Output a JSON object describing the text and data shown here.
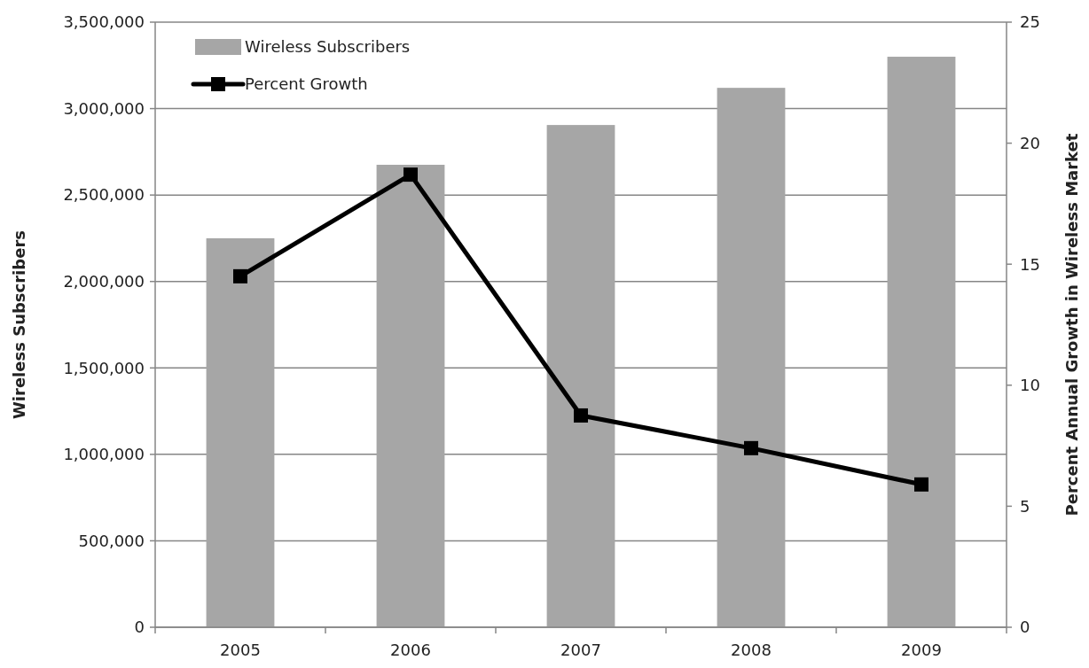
{
  "chart_data": {
    "type": "bar",
    "categories": [
      "2005",
      "2006",
      "2007",
      "2008",
      "2009"
    ],
    "series": [
      {
        "name": "Wireless Subscribers",
        "color": "#a6a6a6",
        "values": [
          2250000,
          2675000,
          2905000,
          3120000,
          3300000
        ]
      },
      {
        "name": "Percent Growth",
        "type": "line",
        "axis": "y2",
        "color": "#000000",
        "values": [
          14.5,
          18.7,
          8.75,
          7.4,
          5.9
        ]
      }
    ],
    "ylabel": "Wireless Subscribers",
    "y2label": "Percent Annual Growth in Wireless Market",
    "ylim": [
      0,
      3500000
    ],
    "yticks": [
      {
        "value": 0,
        "label": "0"
      },
      {
        "value": 500000,
        "label": "500,000"
      },
      {
        "value": 1000000,
        "label": "1,000,000"
      },
      {
        "value": 1500000,
        "label": "1,500,000"
      },
      {
        "value": 2000000,
        "label": "2,000,000"
      },
      {
        "value": 2500000,
        "label": "2,500,000"
      },
      {
        "value": 3000000,
        "label": "3,000,000"
      },
      {
        "value": 3500000,
        "label": "3,500,000"
      }
    ],
    "y2lim": [
      0,
      25
    ],
    "y2ticks": [
      0,
      5,
      10,
      15,
      20,
      25
    ],
    "grid": "y",
    "legend": "top left",
    "marker": "square",
    "line_style": "solid"
  }
}
